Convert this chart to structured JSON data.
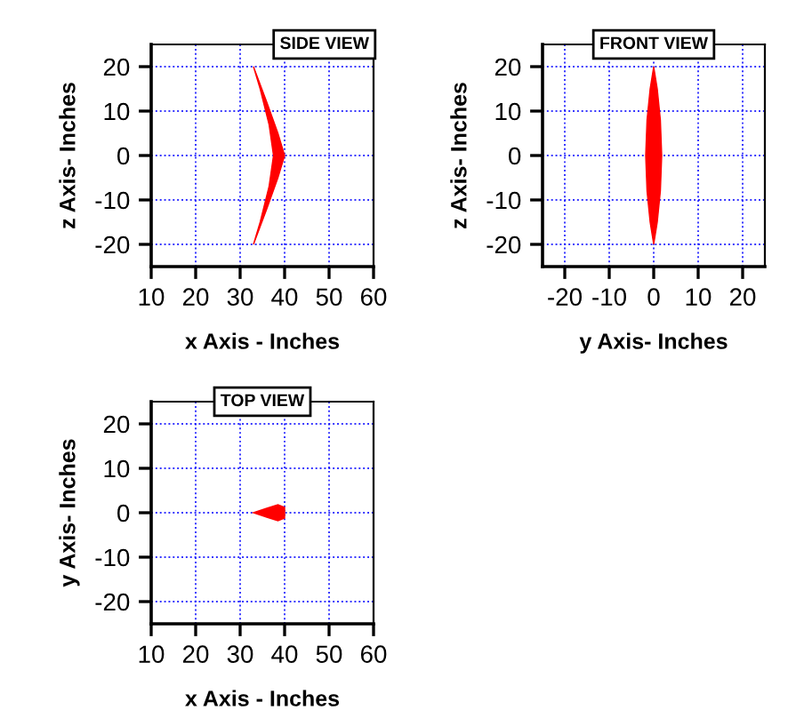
{
  "chart_data": [
    {
      "type": "area",
      "title": "SIDE VIEW",
      "xlabel": "x Axis - Inches",
      "ylabel": "z Axis- Inches",
      "xlim": [
        10,
        60
      ],
      "ylim": [
        -25,
        25
      ],
      "xticks": [
        10,
        20,
        30,
        40,
        50,
        60
      ],
      "yticks": [
        -20,
        -10,
        0,
        10,
        20
      ],
      "grid": true,
      "series": [
        {
          "color": "#ff0000",
          "x": [
            33,
            36,
            38.5,
            40,
            38.5,
            36,
            33,
            34.5,
            36.5,
            37.5,
            36.5,
            34.5
          ],
          "values": [
            20,
            12,
            5,
            0,
            -5,
            -12,
            -20,
            -15,
            -7,
            0,
            7,
            15
          ]
        }
      ]
    },
    {
      "type": "area",
      "title": "FRONT VIEW",
      "xlabel": "y Axis- Inches",
      "ylabel": "z Axis- Inches",
      "xlim": [
        -25,
        25
      ],
      "ylim": [
        -25,
        25
      ],
      "xticks": [
        -20,
        -10,
        0,
        10,
        20
      ],
      "yticks": [
        -20,
        -10,
        0,
        10,
        20
      ],
      "grid": true,
      "series": [
        {
          "color": "#ff0000",
          "x": [
            0,
            0.8,
            1.5,
            1.8,
            1.5,
            0.8,
            0,
            -0.8,
            -1.5,
            -1.8,
            -1.5,
            -0.8
          ],
          "values": [
            20,
            15,
            8,
            0,
            -8,
            -15,
            -20,
            -15,
            -8,
            0,
            8,
            15
          ]
        }
      ]
    },
    {
      "type": "area",
      "title": "TOP VIEW",
      "xlabel": "x Axis - Inches",
      "ylabel": "y Axis- Inches",
      "xlim": [
        10,
        60
      ],
      "ylim": [
        -25,
        25
      ],
      "xticks": [
        10,
        20,
        30,
        40,
        50,
        60
      ],
      "yticks": [
        -20,
        -10,
        0,
        10,
        20
      ],
      "grid": true,
      "series": [
        {
          "color": "#ff0000",
          "x": [
            33,
            36,
            38.5,
            40,
            40,
            38.5,
            36
          ],
          "values": [
            0,
            1,
            1.8,
            1.2,
            -1.2,
            -1.8,
            -1
          ]
        }
      ]
    }
  ]
}
